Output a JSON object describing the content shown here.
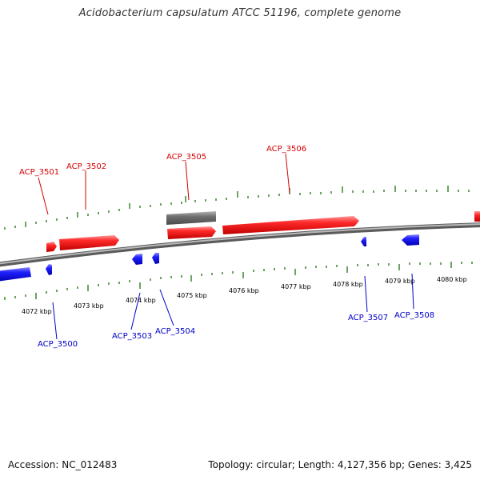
{
  "title": "Acidobacterium capsulatum ATCC 51196, complete genome",
  "footer": {
    "accession": "Accession: NC_012483",
    "summary": "Topology: circular; Length: 4,127,356 bp; Genes: 3,425"
  },
  "scale_labels": [
    "4072 kbp",
    "4073 kbp",
    "4074 kbp",
    "4075 kbp",
    "4076 kbp",
    "4077 kbp",
    "4078 kbp",
    "4079 kbp",
    "4080 kbp"
  ],
  "colors": {
    "forward_gene": "#ff2020",
    "reverse_gene": "#1a1aff",
    "other_feature": "#707070",
    "backbone": "#888888",
    "ticks": "#2e7d1e",
    "forward_label": "#d40000",
    "reverse_label": "#0000c8"
  },
  "forward_genes": {
    "labels": [
      "ACP_3501",
      "ACP_3502",
      "ACP_3505",
      "ACP_3506"
    ]
  },
  "reverse_genes": {
    "labels": [
      "ACP_3500",
      "ACP_3503",
      "ACP_3504",
      "ACP_3507",
      "ACP_3508"
    ]
  }
}
